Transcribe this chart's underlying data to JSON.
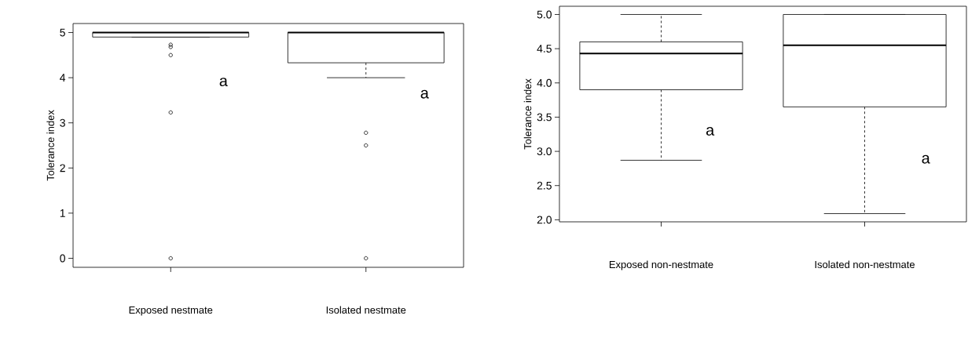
{
  "chart_data": [
    {
      "type": "box",
      "ylabel": "Tolerance index",
      "categories": [
        "Exposed nestmate",
        "Isolated nestmate"
      ],
      "boxes": [
        {
          "low": 4.9,
          "q1": 4.9,
          "median": 5,
          "q3": 5,
          "high": 5,
          "outliers": [
            4.73,
            4.68,
            4.5,
            3.23,
            0
          ]
        },
        {
          "low": 4.0,
          "q1": 4.33,
          "median": 5,
          "q3": 5,
          "high": 5,
          "outliers": [
            2.78,
            2.5,
            0
          ]
        }
      ],
      "ylim": [
        -0.2,
        5.2
      ],
      "yticks": [
        0,
        1,
        2,
        3,
        4,
        5
      ],
      "annotations": [
        "a",
        "a"
      ]
    },
    {
      "type": "box",
      "ylabel": "Tolerance index",
      "categories": [
        "Exposed non-nestmate",
        "Isolated non-nestmate"
      ],
      "boxes": [
        {
          "low": 2.87,
          "q1": 3.9,
          "median": 4.43,
          "q3": 4.6,
          "high": 5.0
        },
        {
          "low": 2.09,
          "q1": 3.65,
          "median": 4.55,
          "q3": 5.0,
          "high": 5.0
        }
      ],
      "ylim": [
        1.97,
        5.12
      ],
      "yticks": [
        {
          "value": 2.0,
          "label": "2.0"
        },
        {
          "value": 2.5,
          "label": "2.5"
        },
        {
          "value": 3.0,
          "label": "3.0"
        },
        {
          "value": 3.5,
          "label": "3.5"
        },
        {
          "value": 4.0,
          "label": "4.0"
        },
        {
          "value": 4.5,
          "label": "4.5"
        },
        {
          "value": 5.0,
          "label": "5.0"
        }
      ],
      "annotations": [
        "a",
        "a"
      ]
    }
  ]
}
